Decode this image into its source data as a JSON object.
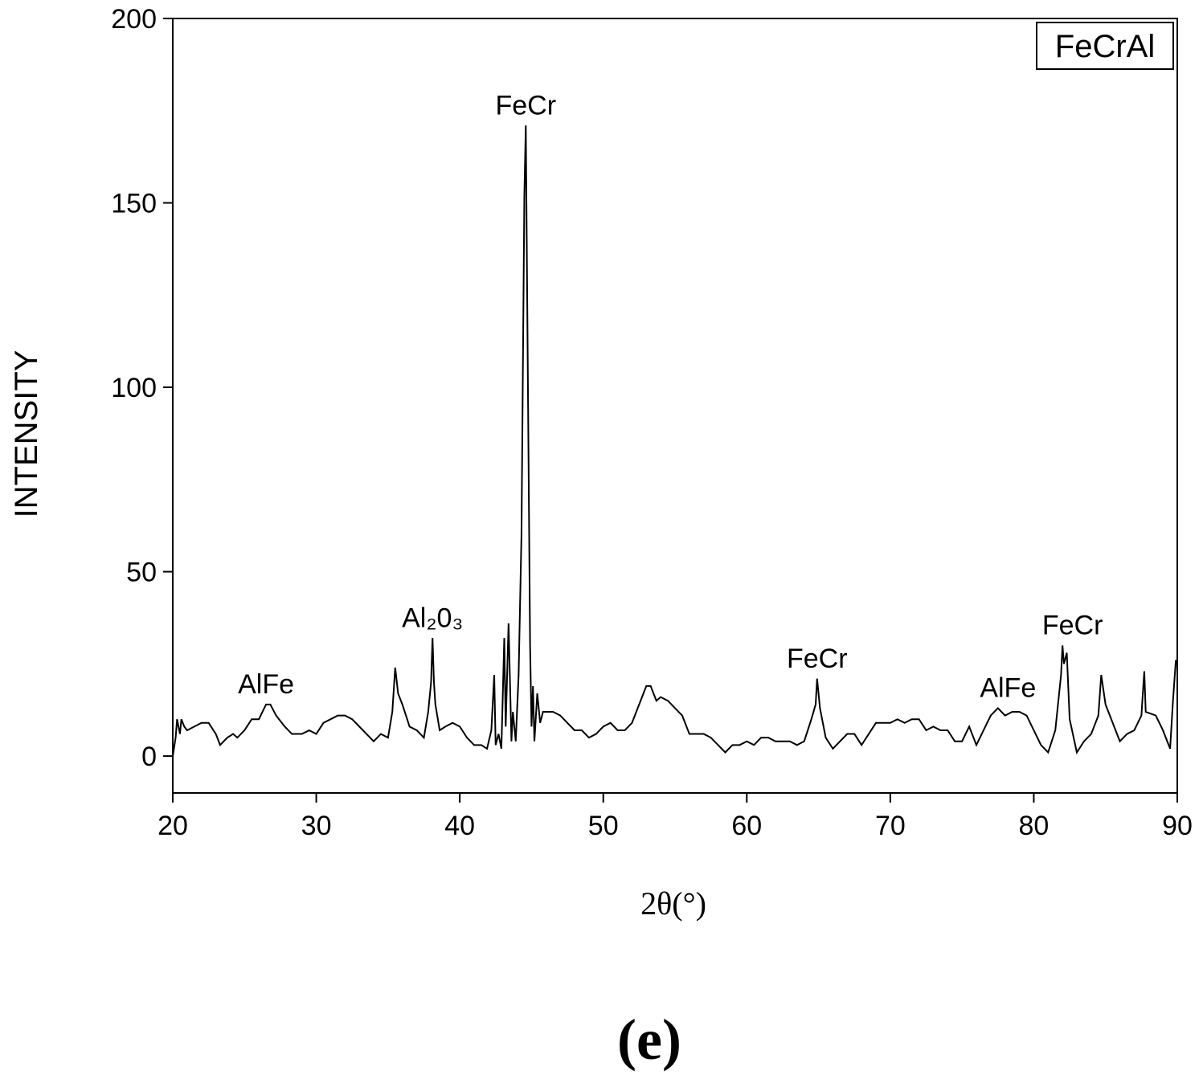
{
  "chart_data": {
    "type": "line",
    "x_label": "2θ(°)",
    "y_label": "INTENSITY",
    "caption": "(e)",
    "xlim": [
      20,
      90
    ],
    "ylim": [
      -10,
      200
    ],
    "xticks": [
      20,
      30,
      40,
      50,
      60,
      70,
      80,
      90
    ],
    "yticks": [
      0,
      50,
      100,
      150,
      200
    ],
    "legend": "upper right",
    "annotations": [
      {
        "text": "AlFe",
        "x": 26.5,
        "y": 17
      },
      {
        "text": "Al₂0₃",
        "x": 38.1,
        "y": 35
      },
      {
        "text": "FeCr",
        "x": 44.6,
        "y": 174
      },
      {
        "text": "FeCr",
        "x": 64.9,
        "y": 24
      },
      {
        "text": "AlFe",
        "x": 78.2,
        "y": 16
      },
      {
        "text": "FeCr",
        "x": 82.7,
        "y": 33
      }
    ],
    "x": [
      20,
      20.2,
      20.3,
      20.5,
      20.6,
      20.8,
      21,
      21.5,
      22,
      22.5,
      23,
      23.3,
      23.8,
      24.2,
      24.5,
      25,
      25.5,
      26,
      26.5,
      26.8,
      27.2,
      27.8,
      28.3,
      29,
      29.5,
      30,
      30.5,
      31,
      31.5,
      32,
      32.5,
      33,
      33.5,
      34,
      34.5,
      35,
      35.3,
      35.5,
      35.7,
      36,
      36.5,
      37,
      37.5,
      37.8,
      38,
      38.1,
      38.2,
      38.3,
      38.6,
      39,
      39.5,
      40,
      40.5,
      41,
      41.5,
      41.9,
      42.2,
      42.4,
      42.5,
      42.7,
      42.9,
      43.1,
      43.2,
      43.4,
      43.6,
      43.7,
      43.9,
      44.1,
      44.3,
      44.5,
      44.6,
      44.75,
      44.9,
      45,
      45.1,
      45.2,
      45.4,
      45.6,
      45.8,
      46.5,
      47,
      47.5,
      48,
      48.5,
      49,
      49.5,
      50,
      50.5,
      51,
      51.5,
      52,
      52.5,
      53,
      53.3,
      53.7,
      54,
      54.5,
      55,
      55.5,
      56,
      56.5,
      57,
      57.5,
      58,
      58.5,
      59,
      59.5,
      60,
      60.5,
      61,
      61.5,
      62,
      62.5,
      63,
      63.5,
      64,
      64.5,
      64.8,
      64.9,
      65.1,
      65.5,
      66,
      66.5,
      67,
      67.5,
      68,
      68.5,
      69,
      69.5,
      70,
      70.5,
      71,
      71.5,
      72,
      72.5,
      73,
      73.5,
      74,
      74.5,
      75,
      75.5,
      76,
      76.5,
      77,
      77.5,
      78,
      78.5,
      79,
      79.5,
      80,
      80.5,
      81,
      81.5,
      81.9,
      82,
      82.1,
      82.3,
      82.5,
      83,
      83.5,
      84,
      84.5,
      84.7,
      85,
      85.5,
      86,
      86.5,
      87,
      87.5,
      87.7,
      87.8,
      88.5,
      89,
      89.5,
      89.7,
      89.9,
      90
    ],
    "series": [
      {
        "name": "FeCrAl",
        "color": "#000000",
        "values": [
          0,
          5,
          10,
          6,
          10,
          8,
          7,
          8,
          9,
          9,
          6,
          3,
          5,
          6,
          5,
          7,
          10,
          10,
          14,
          14,
          11,
          8,
          6,
          6,
          7,
          6,
          9,
          10,
          11,
          11,
          10,
          8,
          6,
          4,
          6,
          5,
          12,
          24,
          17,
          14,
          8,
          7,
          5,
          12,
          20,
          32,
          20,
          14,
          7,
          8,
          9,
          8,
          5,
          3,
          3,
          2,
          7,
          22,
          3,
          6,
          2,
          32,
          8,
          36,
          4,
          12,
          4,
          22,
          60,
          152,
          171,
          100,
          30,
          8,
          19,
          4,
          17,
          9,
          12,
          12,
          11,
          9,
          7,
          7,
          5,
          6,
          8,
          9,
          7,
          7,
          9,
          14,
          19,
          19,
          15,
          16,
          15,
          13,
          11,
          6,
          6,
          6,
          5,
          3,
          1,
          3,
          3,
          4,
          3,
          5,
          5,
          4,
          4,
          4,
          3,
          4,
          10,
          14,
          21,
          13,
          5,
          2,
          4,
          6,
          6,
          3,
          6,
          9,
          9,
          9,
          10,
          9,
          10,
          10,
          7,
          8,
          7,
          7,
          4,
          4,
          8,
          3,
          7,
          11,
          13,
          11,
          12,
          12,
          11,
          7,
          3,
          1,
          7,
          22,
          30,
          25,
          28,
          10,
          1,
          4,
          6,
          11,
          22,
          14,
          9,
          4,
          6,
          7,
          11,
          23,
          12,
          11,
          7,
          2,
          15,
          26,
          25
        ]
      }
    ]
  }
}
